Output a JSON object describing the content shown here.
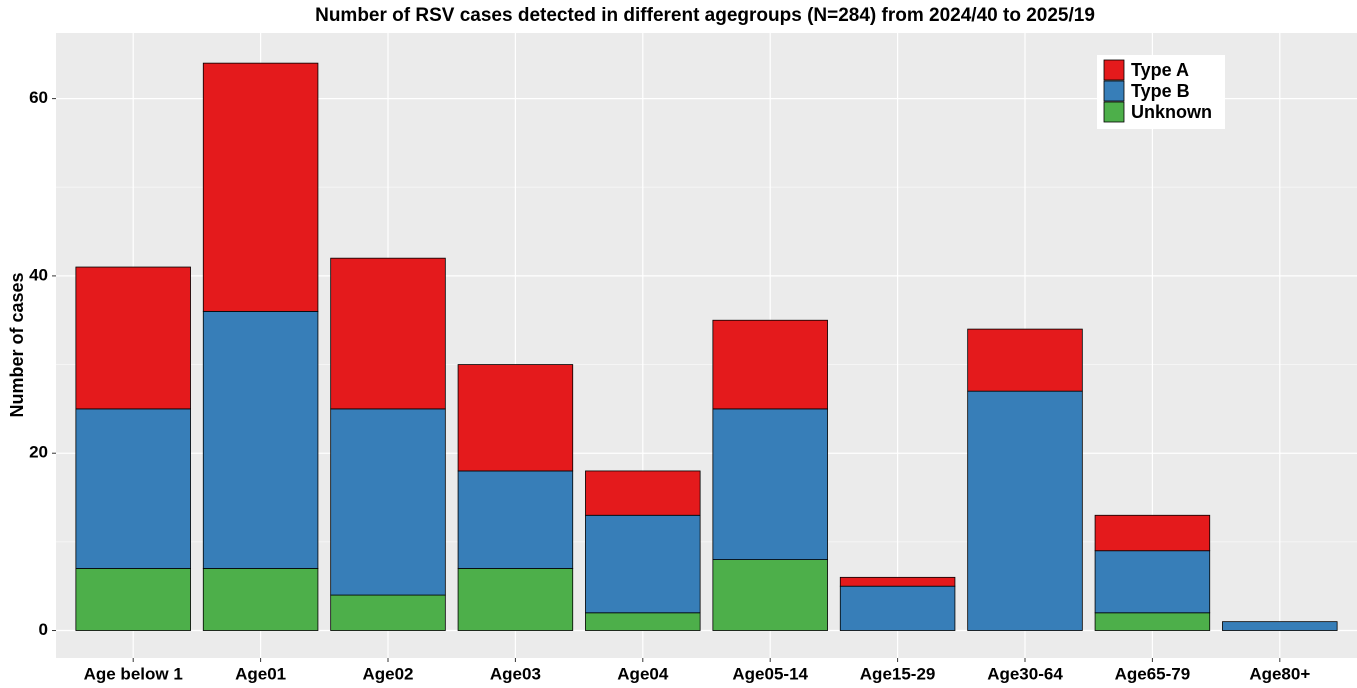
{
  "chart_data": {
    "type": "stacked_bar",
    "title": "Number of RSV cases detected in different agegroups (N=284) from 2024/40 to 2025/19",
    "y_label": "Number of cases",
    "categories": [
      "Age below 1",
      "Age01",
      "Age02",
      "Age03",
      "Age04",
      "Age05-14",
      "Age15-29",
      "Age30-64",
      "Age65-79",
      "Age80+"
    ],
    "series": [
      {
        "name": "Type A",
        "color": "#e41a1c",
        "values": [
          16,
          28,
          17,
          12,
          5,
          10,
          1,
          7,
          4,
          0
        ]
      },
      {
        "name": "Type B",
        "color": "#377eb8",
        "values": [
          18,
          29,
          21,
          11,
          11,
          17,
          5,
          27,
          7,
          1
        ]
      },
      {
        "name": "Unknown",
        "color": "#4daf4a",
        "values": [
          7,
          7,
          4,
          7,
          2,
          8,
          0,
          0,
          2,
          0
        ]
      }
    ],
    "ylim": [
      -3.1,
      67.4
    ],
    "yticks": [
      0,
      20,
      40,
      60
    ],
    "grid": true,
    "legend": "top-right"
  }
}
